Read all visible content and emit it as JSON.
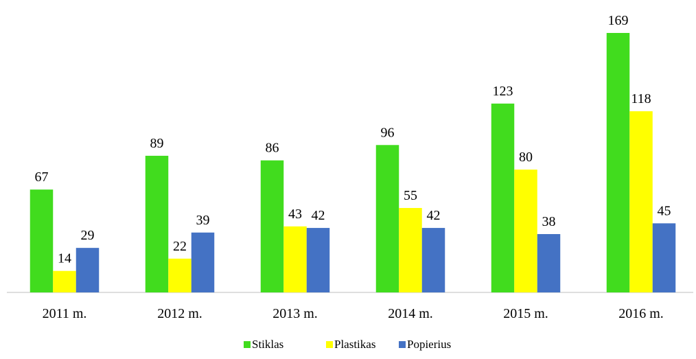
{
  "chart_data": {
    "type": "bar",
    "categories": [
      "2011 m.",
      "2012 m.",
      "2013 m.",
      "2014 m.",
      "2015 m.",
      "2016 m."
    ],
    "series": [
      {
        "name": "Stiklas",
        "color": "#41dc1e",
        "values": [
          67,
          89,
          86,
          96,
          123,
          169
        ]
      },
      {
        "name": "Plastikas",
        "color": "#ffff00",
        "values": [
          14,
          22,
          43,
          55,
          80,
          118
        ]
      },
      {
        "name": "Popierius",
        "color": "#4472c4",
        "values": [
          29,
          39,
          42,
          42,
          38,
          45
        ]
      }
    ],
    "legend": "bottom"
  }
}
